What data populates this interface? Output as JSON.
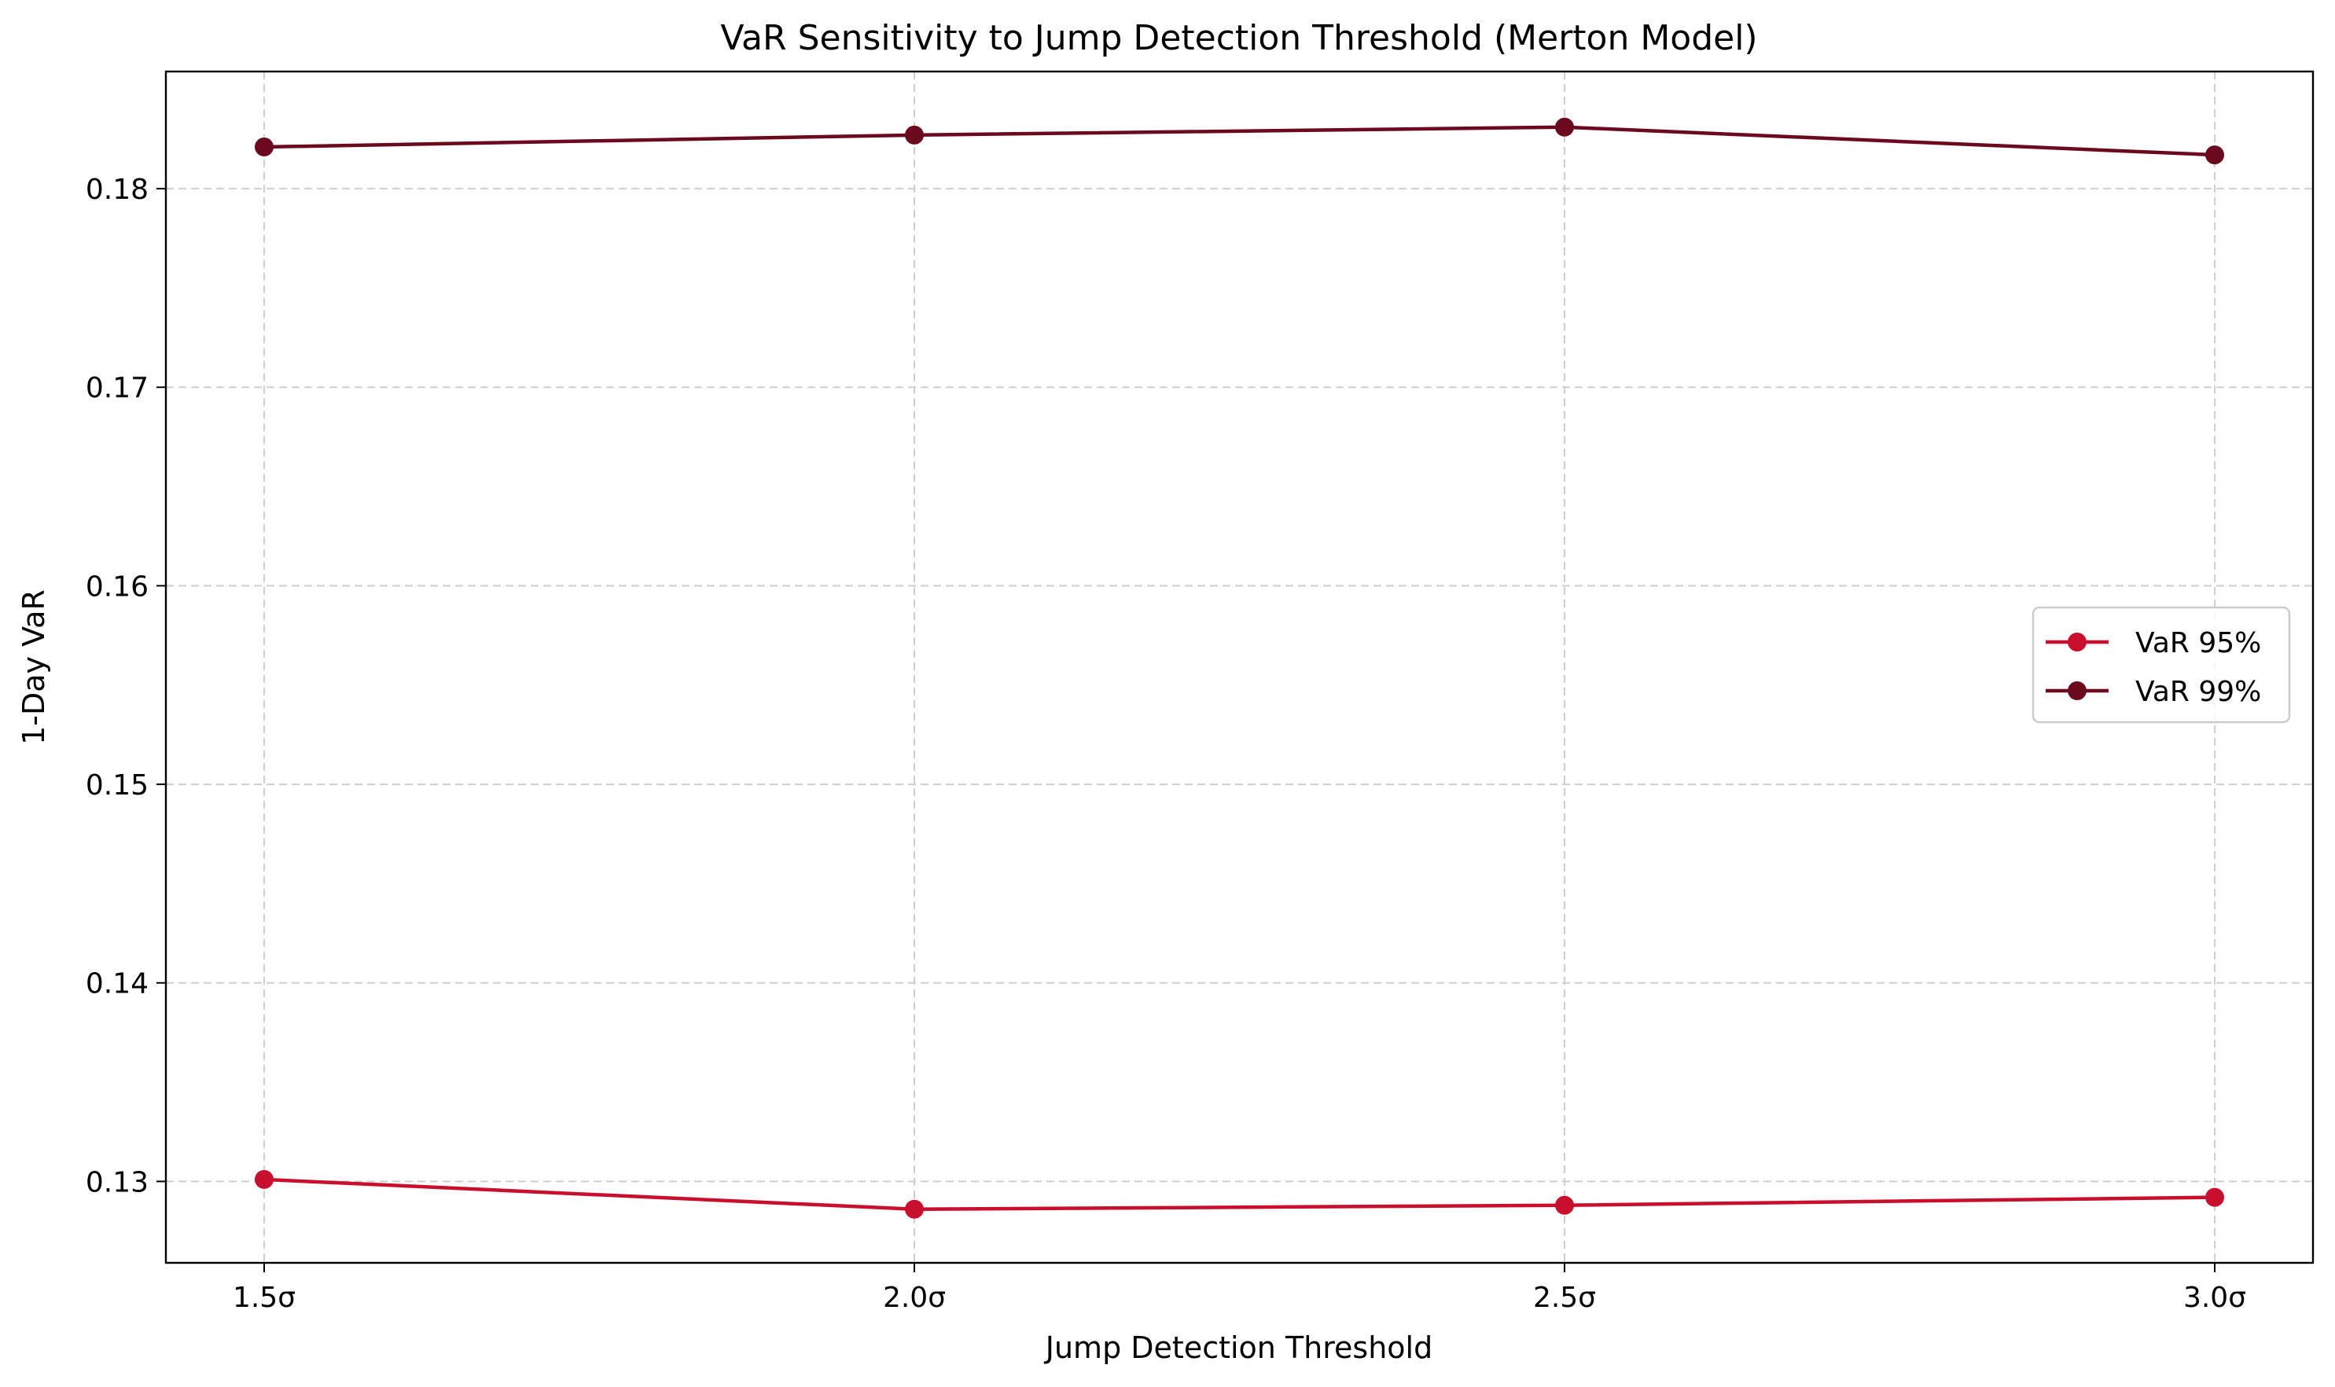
{
  "chart_data": {
    "type": "line",
    "title": "VaR Sensitivity to Jump Detection Threshold (Merton Model)",
    "xlabel": "Jump Detection Threshold",
    "ylabel": "1-Day VaR",
    "categories": [
      "1.5σ",
      "2.0σ",
      "2.5σ",
      "3.0σ"
    ],
    "ylim": [
      0.1259,
      0.1859
    ],
    "yticks": [
      0.13,
      0.14,
      0.15,
      0.16,
      0.17,
      0.18
    ],
    "ytick_labels": [
      "0.13",
      "0.14",
      "0.15",
      "0.16",
      "0.17",
      "0.18"
    ],
    "grid": true,
    "grid_style": "dashed",
    "legend_position": "center-right",
    "series": [
      {
        "name": "VaR 95%",
        "color": "#c8102e",
        "marker": "circle",
        "values": [
          0.1301,
          0.1286,
          0.1288,
          0.1292
        ]
      },
      {
        "name": "VaR 99%",
        "color": "#6b0a1e",
        "marker": "circle",
        "values": [
          0.1821,
          0.1827,
          0.1831,
          0.1817
        ]
      }
    ]
  }
}
